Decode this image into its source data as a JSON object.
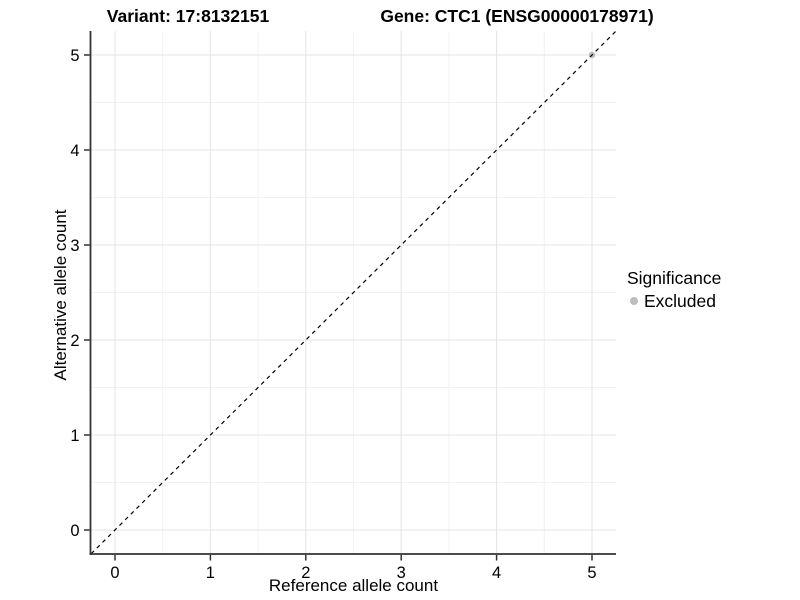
{
  "header": {
    "variant_title": "Variant: 17:8132151",
    "gene_title": "Gene: CTC1 (ENSG00000178971)"
  },
  "axes": {
    "x_label": "Reference allele count",
    "y_label": "Alternative allele count"
  },
  "legend": {
    "title": "Significance",
    "entries": [
      {
        "label": "Excluded",
        "color": "#bdbdbd"
      }
    ]
  },
  "chart_data": {
    "type": "scatter",
    "title_left": "Variant: 17:8132151",
    "title_right": "Gene: CTC1 (ENSG00000178971)",
    "xlabel": "Reference allele count",
    "ylabel": "Alternative allele count",
    "xlim": [
      -0.25,
      5.25
    ],
    "ylim": [
      -0.25,
      5.25
    ],
    "x_ticks": [
      0,
      1,
      2,
      3,
      4,
      5
    ],
    "y_ticks": [
      0,
      1,
      2,
      3,
      4,
      5
    ],
    "grid": "major and minor gridlines on white panel, open top/right, dark left and bottom axis lines",
    "series": [
      {
        "name": "Excluded",
        "type": "scatter",
        "color": "#bdbdbd",
        "points": [
          {
            "x": 5,
            "y": 5
          }
        ]
      }
    ],
    "reference_line": {
      "type": "identity y=x",
      "style": "dashed",
      "color": "#000000",
      "x1": -0.25,
      "y1": -0.25,
      "x2": 5.25,
      "y2": 5.25
    },
    "legend": {
      "title": "Significance",
      "position": "right",
      "entries": [
        "Excluded"
      ]
    },
    "colors": {
      "background": "#ffffff",
      "grid_major": "#e4e4e4",
      "grid_minor": "#f2f2f2",
      "axis_line": "#333333",
      "text": "#000000",
      "point_excluded": "#bdbdbd"
    }
  }
}
